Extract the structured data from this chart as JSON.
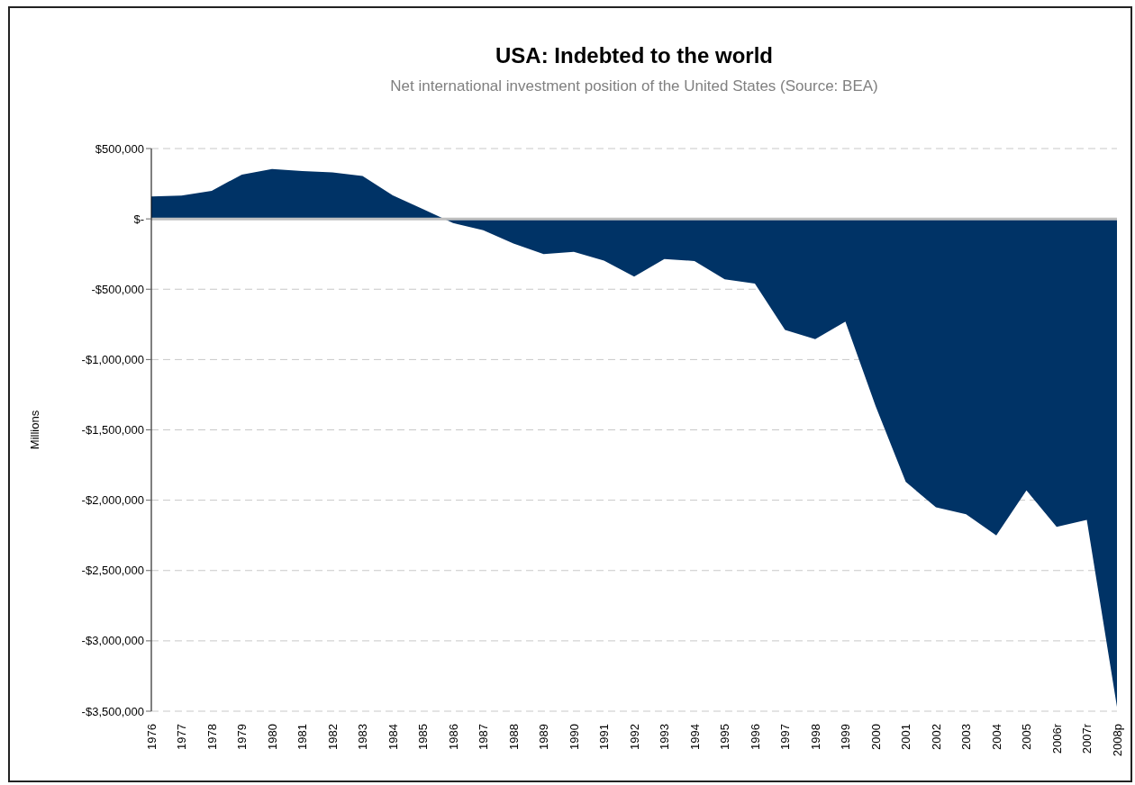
{
  "chart_data": {
    "type": "area",
    "title": "USA: Indebted to the world",
    "subtitle": "Net international investment position of the United States (Source: BEA)",
    "ylabel": "Millions",
    "categories": [
      "1976",
      "1977",
      "1978",
      "1979",
      "1980",
      "1981",
      "1982",
      "1983",
      "1984",
      "1985",
      "1986",
      "1987",
      "1988",
      "1989",
      "1990",
      "1991",
      "1992",
      "1993",
      "1994",
      "1995",
      "1996",
      "1997",
      "1998",
      "1999",
      "2000",
      "2001",
      "2002",
      "2003",
      "2004",
      "2005",
      "2006r",
      "2007r",
      "2008p"
    ],
    "series": [
      {
        "color": "#003366",
        "values": [
          160000,
          165000,
          200000,
          315000,
          355000,
          340000,
          330000,
          305000,
          167000,
          70000,
          -30000,
          -80000,
          -175000,
          -250000,
          -235000,
          -297000,
          -410000,
          -285000,
          -300000,
          -430000,
          -460000,
          -790000,
          -855000,
          -730000,
          -1330000,
          -1870000,
          -2050000,
          -2100000,
          -2250000,
          -1930000,
          -2190000,
          -2140000,
          -3470000
        ]
      }
    ],
    "ylim": [
      -3500000,
      500000
    ],
    "yticks": [
      {
        "value": -3500000,
        "label": "-$3,500,000"
      },
      {
        "value": -3000000,
        "label": "-$3,000,000"
      },
      {
        "value": -2500000,
        "label": "-$2,500,000"
      },
      {
        "value": -2000000,
        "label": "-$2,000,000"
      },
      {
        "value": -1500000,
        "label": "-$1,500,000"
      },
      {
        "value": -1000000,
        "label": "-$1,000,000"
      },
      {
        "value": -500000,
        "label": "-$500,000"
      },
      {
        "value": 0,
        "label": "$-"
      },
      {
        "value": 500000,
        "label": "$500,000"
      }
    ],
    "grid": "y"
  }
}
